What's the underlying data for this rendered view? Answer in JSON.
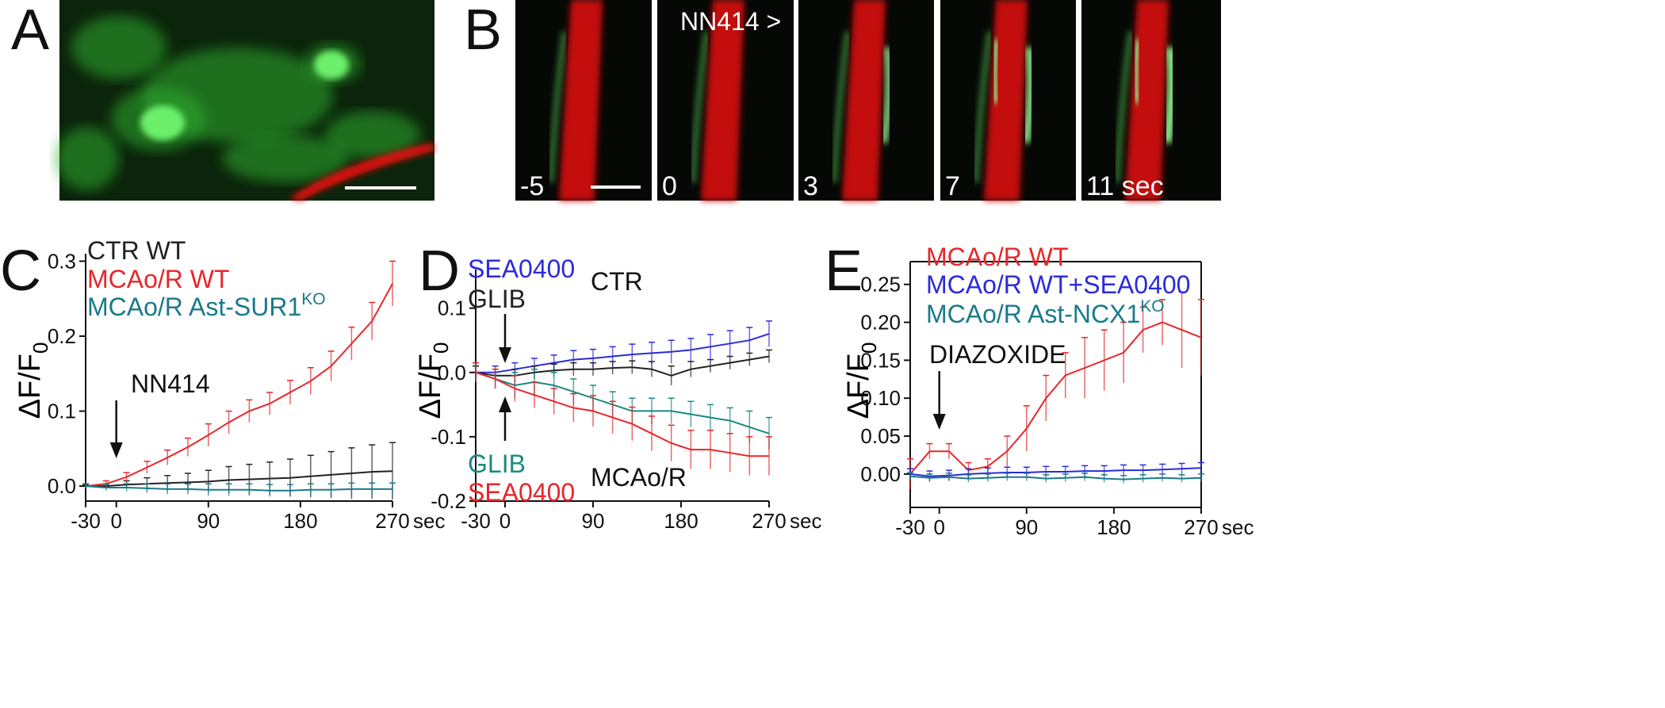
{
  "image_panels": {
    "a": {
      "letter": "A"
    },
    "b": {
      "letter": "B",
      "caption": "NN414 >",
      "frames": [
        "-5",
        "0",
        "3",
        "7",
        "11 sec"
      ]
    }
  },
  "chart_data": [
    {
      "type": "line",
      "panel_letter": "C",
      "ylabel": "ΔF/F",
      "ylabel_sub": "0",
      "xlabel": "sec",
      "x": [
        -30,
        -10,
        10,
        30,
        50,
        70,
        90,
        110,
        130,
        150,
        170,
        190,
        210,
        230,
        250,
        270
      ],
      "xlim": [
        -30,
        270
      ],
      "xticks": [
        -30,
        0,
        90,
        180,
        270
      ],
      "ylim": [
        -0.02,
        0.31
      ],
      "yticks": [
        {
          "value": 0,
          "label": "0.0"
        },
        0.1,
        0.2,
        0.3
      ],
      "arrows": [
        {
          "x": 0,
          "direction": "down",
          "label": "NN414"
        }
      ],
      "series": [
        {
          "name": "CTR WT",
          "color": "#222222",
          "values": [
            0,
            0,
            0.002,
            0.003,
            0.004,
            0.005,
            0.006,
            0.008,
            0.009,
            0.01,
            0.011,
            0.013,
            0.015,
            0.017,
            0.019,
            0.02
          ],
          "errors": [
            0.002,
            0.003,
            0.005,
            0.008,
            0.01,
            0.012,
            0.015,
            0.018,
            0.02,
            0.022,
            0.025,
            0.028,
            0.031,
            0.034,
            0.036,
            0.038
          ]
        },
        {
          "name": "MCAo/R WT",
          "color": "#e8262a",
          "values": [
            0,
            0.003,
            0.012,
            0.025,
            0.038,
            0.052,
            0.068,
            0.085,
            0.1,
            0.11,
            0.125,
            0.14,
            0.16,
            0.19,
            0.22,
            0.27
          ],
          "errors": [
            0.003,
            0.004,
            0.006,
            0.008,
            0.01,
            0.012,
            0.015,
            0.015,
            0.015,
            0.015,
            0.016,
            0.018,
            0.02,
            0.022,
            0.025,
            0.03
          ]
        },
        {
          "name": "MCAo/R Ast-SUR1",
          "name_sup": "KO",
          "color": "#1a7a8a",
          "values": [
            0,
            -0.002,
            -0.002,
            -0.003,
            -0.004,
            -0.004,
            -0.005,
            -0.005,
            -0.005,
            -0.006,
            -0.006,
            -0.005,
            -0.005,
            -0.004,
            -0.004,
            -0.004
          ],
          "errors": [
            0.003,
            0.004,
            0.005,
            0.006,
            0.007,
            0.007,
            0.008,
            0.008,
            0.008,
            0.008,
            0.008,
            0.008,
            0.008,
            0.008,
            0.008,
            0.008
          ]
        }
      ]
    },
    {
      "type": "line",
      "panel_letter": "D",
      "ylabel": "ΔF/F",
      "ylabel_sub": "0",
      "xlabel": "sec",
      "x": [
        -30,
        -10,
        10,
        30,
        50,
        70,
        90,
        110,
        130,
        150,
        170,
        190,
        210,
        230,
        250,
        270
      ],
      "xlim": [
        -30,
        270
      ],
      "xticks": [
        -30,
        0,
        90,
        180,
        270
      ],
      "ylim": [
        -0.2,
        0.16
      ],
      "yticks": [
        -0.2,
        -0.1,
        {
          "value": 0,
          "label": "0.0"
        },
        0.1
      ],
      "group_labels": [
        "CTR",
        "MCAo/R"
      ],
      "arrows": [
        {
          "x": 0,
          "direction": "down"
        },
        {
          "x": 0,
          "direction": "up"
        }
      ],
      "series": [
        {
          "name": "SEA0400",
          "color": "#2b2bd9",
          "values": [
            0,
            0,
            0.005,
            0.01,
            0.015,
            0.02,
            0.022,
            0.025,
            0.028,
            0.03,
            0.032,
            0.035,
            0.04,
            0.045,
            0.05,
            0.06
          ],
          "errors": [
            0.01,
            0.01,
            0.01,
            0.012,
            0.012,
            0.014,
            0.014,
            0.015,
            0.016,
            0.017,
            0.018,
            0.018,
            0.019,
            0.02,
            0.02,
            0.02
          ]
        },
        {
          "name": "GLIB",
          "color": "#222222",
          "values": [
            0,
            -0.005,
            -0.005,
            0,
            0.003,
            0.005,
            0.005,
            0.007,
            0.008,
            0.005,
            -0.005,
            0.005,
            0.01,
            0.015,
            0.02,
            0.025
          ],
          "errors": [
            0.01,
            0.01,
            0.01,
            0.01,
            0.01,
            0.01,
            0.01,
            0.01,
            0.01,
            0.012,
            0.015,
            0.012,
            0.01,
            0.01,
            0.01,
            0.01
          ]
        },
        {
          "name": "GLIB",
          "color": "#1a8a80",
          "values": [
            0,
            -0.01,
            -0.02,
            -0.015,
            -0.02,
            -0.03,
            -0.04,
            -0.05,
            -0.06,
            -0.06,
            -0.06,
            -0.065,
            -0.07,
            -0.075,
            -0.085,
            -0.095
          ],
          "errors": [
            0.015,
            0.015,
            0.02,
            0.02,
            0.02,
            0.02,
            0.02,
            0.02,
            0.02,
            0.02,
            0.02,
            0.02,
            0.02,
            0.02,
            0.025,
            0.025
          ]
        },
        {
          "name": "SEA0400",
          "color": "#e8262a",
          "values": [
            0,
            -0.01,
            -0.025,
            -0.035,
            -0.045,
            -0.055,
            -0.06,
            -0.07,
            -0.08,
            -0.095,
            -0.11,
            -0.12,
            -0.12,
            -0.125,
            -0.13,
            -0.13
          ],
          "errors": [
            0.015,
            0.015,
            0.02,
            0.02,
            0.02,
            0.022,
            0.024,
            0.025,
            0.026,
            0.027,
            0.028,
            0.03,
            0.03,
            0.03,
            0.03,
            0.03
          ]
        }
      ]
    },
    {
      "type": "line",
      "panel_letter": "E",
      "ylabel": "ΔF/F",
      "ylabel_sub": "0",
      "xlabel": "sec",
      "box": true,
      "x": [
        -30,
        -10,
        10,
        30,
        50,
        70,
        90,
        110,
        130,
        150,
        170,
        190,
        210,
        230,
        250,
        270
      ],
      "xlim": [
        -30,
        270
      ],
      "xticks": [
        -30,
        0,
        90,
        180,
        270
      ],
      "ylim": [
        -0.044,
        0.28
      ],
      "yticks": [
        {
          "value": 0,
          "label": "0.00"
        },
        0.05,
        {
          "value": 0.1,
          "label": "0.10"
        },
        0.15,
        {
          "value": 0.2,
          "label": "0.20"
        },
        0.25
      ],
      "arrows": [
        {
          "x": 0,
          "direction": "down",
          "label": "DIAZOXIDE"
        }
      ],
      "series": [
        {
          "name": "MCAo/R WT",
          "color": "#e8262a",
          "values": [
            0,
            0.03,
            0.03,
            0.005,
            0.01,
            0.03,
            0.06,
            0.1,
            0.13,
            0.14,
            0.15,
            0.16,
            0.19,
            0.2,
            0.19,
            0.18
          ],
          "errors": [
            0.02,
            0.01,
            0.01,
            0.01,
            0.01,
            0.02,
            0.03,
            0.03,
            0.03,
            0.04,
            0.04,
            0.04,
            0.03,
            0.03,
            0.05,
            0.05
          ]
        },
        {
          "name": "MCAo/R WT+SEA0400",
          "color": "#2b2bd9",
          "values": [
            0,
            -0.003,
            -0.002,
            0,
            0.001,
            0.002,
            0.002,
            0.003,
            0.003,
            0.004,
            0.004,
            0.005,
            0.005,
            0.006,
            0.007,
            0.008
          ],
          "errors": [
            0.007,
            0.007,
            0.007,
            0.007,
            0.007,
            0.007,
            0.007,
            0.007,
            0.007,
            0.007,
            0.007,
            0.007,
            0.007,
            0.007,
            0.007,
            0.007
          ]
        },
        {
          "name": "MCAo/R Ast-NCX1",
          "name_sup": "KO",
          "color": "#1a7a8a",
          "values": [
            -0.003,
            -0.005,
            -0.004,
            -0.006,
            -0.005,
            -0.004,
            -0.004,
            -0.006,
            -0.005,
            -0.004,
            -0.006,
            -0.007,
            -0.006,
            -0.005,
            -0.006,
            -0.005
          ],
          "errors": [
            0.005,
            0.005,
            0.005,
            0.005,
            0.005,
            0.005,
            0.005,
            0.005,
            0.005,
            0.005,
            0.005,
            0.005,
            0.005,
            0.005,
            0.005,
            0.005
          ]
        }
      ]
    }
  ]
}
